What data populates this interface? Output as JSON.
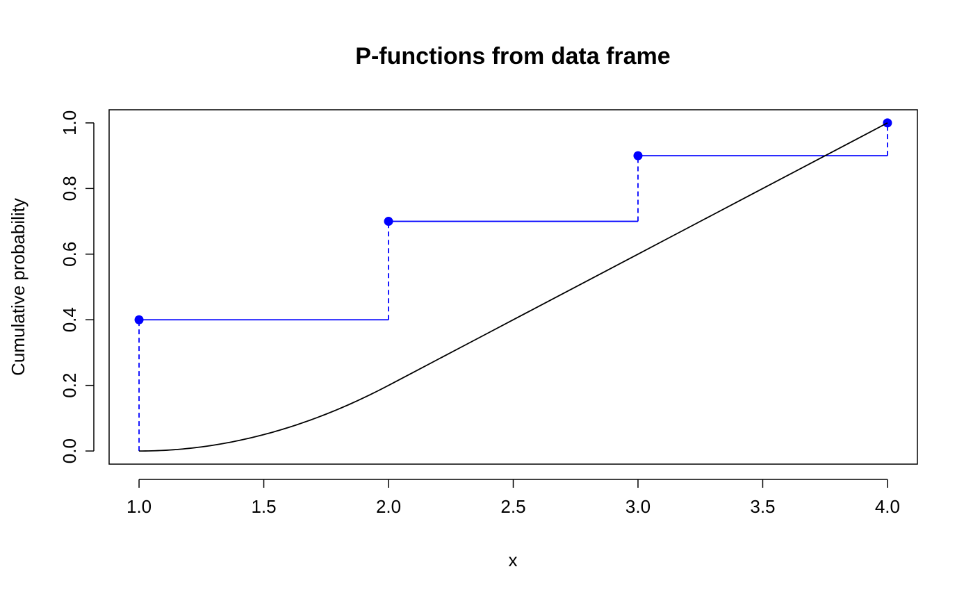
{
  "chart_data": {
    "type": "line",
    "title": "P-functions from data frame",
    "xlabel": "x",
    "ylabel": "Cumulative probability",
    "xlim": [
      0.88,
      4.12
    ],
    "ylim": [
      -0.04,
      1.04
    ],
    "x_ticks": [
      "1.0",
      "1.5",
      "2.0",
      "2.5",
      "3.0",
      "3.5",
      "4.0"
    ],
    "y_ticks": [
      "0.0",
      "0.2",
      "0.4",
      "0.6",
      "0.8",
      "1.0"
    ],
    "grid": false,
    "legend": "none",
    "series": [
      {
        "style": "step",
        "color": "#0000ff",
        "jump_linestyle": "dashed",
        "points": [
          {
            "x": 1,
            "y": 0.4
          },
          {
            "x": 2,
            "y": 0.7
          },
          {
            "x": 3,
            "y": 0.9
          },
          {
            "x": 4,
            "y": 1.0
          }
        ]
      },
      {
        "style": "line",
        "color": "#000000",
        "points": [
          {
            "x": 1.0,
            "y": 0.0
          },
          {
            "x": 1.25,
            "y": 0.0125
          },
          {
            "x": 1.5,
            "y": 0.05
          },
          {
            "x": 1.75,
            "y": 0.1125
          },
          {
            "x": 2.0,
            "y": 0.2
          },
          {
            "x": 4.0,
            "y": 1.0
          }
        ]
      }
    ]
  }
}
